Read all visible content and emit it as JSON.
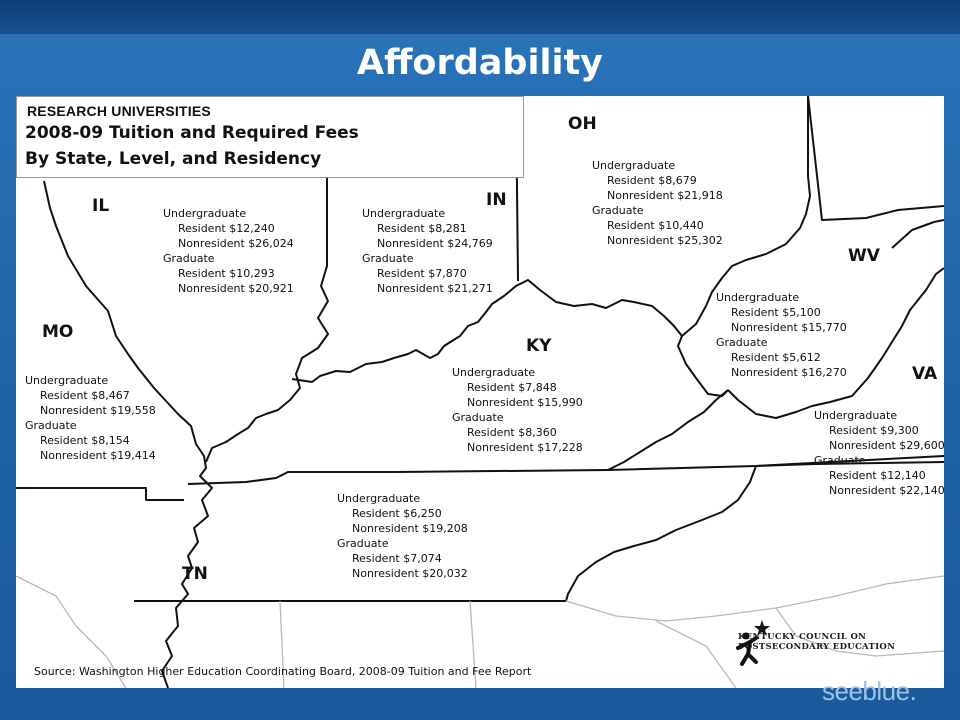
{
  "title": "Affordability",
  "legend": {
    "category": "RESEARCH UNIVERSITIES",
    "line1": "2008-09 Tuition and Required Fees",
    "line2": "By State, Level, and Residency"
  },
  "states": {
    "il": {
      "name": "IL",
      "ug_label": "Undergraduate",
      "ug_res": "Resident $12,240",
      "ug_non": "Nonresident $26,024",
      "gr_label": "Graduate",
      "gr_res": "Resident $10,293",
      "gr_non": "Nonresident $20,921"
    },
    "in": {
      "name": "IN",
      "ug_label": "Undergraduate",
      "ug_res": "Resident $8,281",
      "ug_non": "Nonresident $24,769",
      "gr_label": "Graduate",
      "gr_res": "Resident $7,870",
      "gr_non": "Nonresident $21,271"
    },
    "oh": {
      "name": "OH",
      "ug_label": "Undergraduate",
      "ug_res": "Resident $8,679",
      "ug_non": "Nonresident $21,918",
      "gr_label": "Graduate",
      "gr_res": "Resident $10,440",
      "gr_non": "Nonresident $25,302"
    },
    "mo": {
      "name": "MO",
      "ug_label": "Undergraduate",
      "ug_res": "Resident $8,467",
      "ug_non": "Nonresident $19,558",
      "gr_label": "Graduate",
      "gr_res": "Resident $8,154",
      "gr_non": "Nonresident $19,414"
    },
    "ky": {
      "name": "KY",
      "ug_label": "Undergraduate",
      "ug_res": "Resident $7,848",
      "ug_non": "Nonresident $15,990",
      "gr_label": "Graduate",
      "gr_res": "Resident $8,360",
      "gr_non": "Nonresident $17,228"
    },
    "wv": {
      "name": "WV",
      "ug_label": "Undergraduate",
      "ug_res": "Resident $5,100",
      "ug_non": "Nonresident $15,770",
      "gr_label": "Graduate",
      "gr_res": "Resident $5,612",
      "gr_non": "Nonresident $16,270"
    },
    "va": {
      "name": "VA",
      "ug_label": "Undergraduate",
      "ug_res": "Resident $9,300",
      "ug_non": "Nonresident $29,600",
      "gr_label": "Graduate",
      "gr_res": "Resident $12,140",
      "gr_non": "Nonresident $22,140"
    },
    "tn": {
      "name": "TN",
      "ug_label": "Undergraduate",
      "ug_res": "Resident $6,250",
      "ug_non": "Nonresident $19,208",
      "gr_label": "Graduate",
      "gr_res": "Resident $7,074",
      "gr_non": "Nonresident $20,032"
    }
  },
  "source": "Source:  Washington Higher Education Coordinating Board, 2008-09 Tuition and Fee Report",
  "logo": {
    "line1": "KENTUCKY COUNCIL ON",
    "line2": "POSTSECONDARY EDUCATION"
  },
  "brand": "seeblue."
}
